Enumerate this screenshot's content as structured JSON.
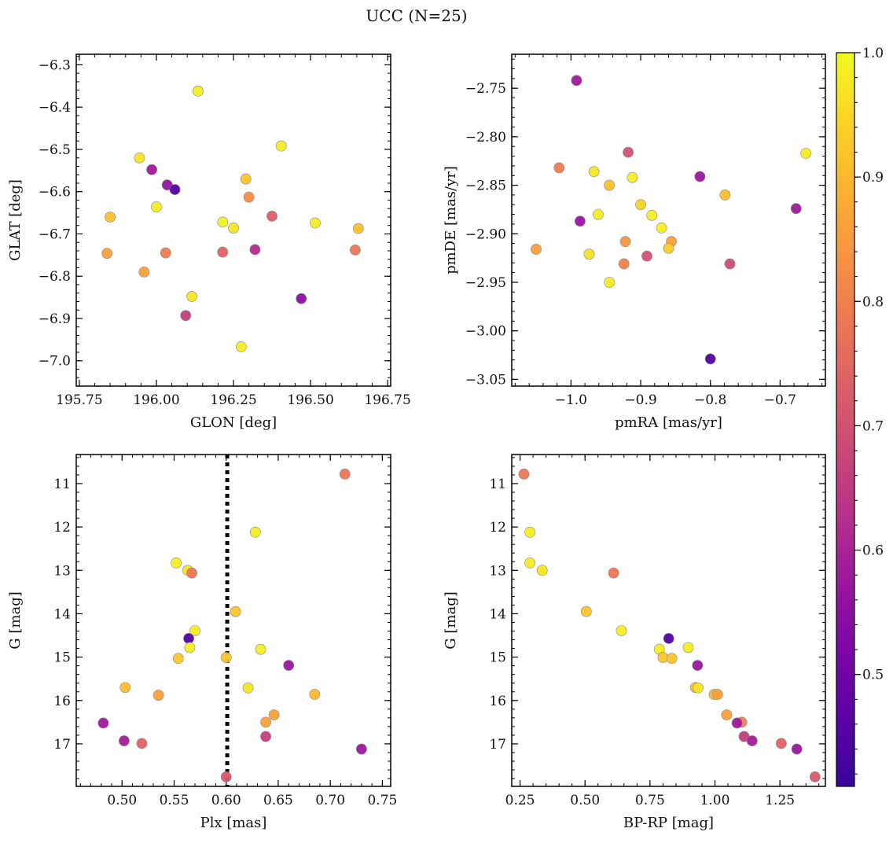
{
  "figure": {
    "suptitle": "UCC (N=25)"
  },
  "colorbar": {
    "cmap": "plasma",
    "vmin": 0.41,
    "vmax": 1.0,
    "ticks": [
      {
        "v": 0.5,
        "label": "0.5"
      },
      {
        "v": 0.6,
        "label": "0.6"
      },
      {
        "v": 0.7,
        "label": "0.7"
      },
      {
        "v": 0.8,
        "label": "0.8"
      },
      {
        "v": 0.9,
        "label": "0.9"
      },
      {
        "v": 1.0,
        "label": "1.0"
      }
    ]
  },
  "chart_data": [
    {
      "id": "glon-glat",
      "type": "scatter",
      "title": "",
      "xlabel": "GLON [deg]",
      "ylabel": "GLAT [deg]",
      "xlim": [
        195.74,
        196.76
      ],
      "ylim": [
        -7.06,
        -6.275
      ],
      "y_inverted": false,
      "xticks": [
        {
          "v": 195.75,
          "label": "195.75"
        },
        {
          "v": 196.0,
          "label": "196.00"
        },
        {
          "v": 196.25,
          "label": "196.25"
        },
        {
          "v": 196.5,
          "label": "196.50"
        },
        {
          "v": 196.75,
          "label": "196.75"
        }
      ],
      "yticks": [
        {
          "v": -6.3,
          "label": "−6.3"
        },
        {
          "v": -6.4,
          "label": "−6.4"
        },
        {
          "v": -6.5,
          "label": "−6.5"
        },
        {
          "v": -6.6,
          "label": "−6.6"
        },
        {
          "v": -6.7,
          "label": "−6.7"
        },
        {
          "v": -6.8,
          "label": "−6.8"
        },
        {
          "v": -6.9,
          "label": "−6.9"
        },
        {
          "v": -7.0,
          "label": "−7.0"
        }
      ],
      "x_minor_step": 0.05,
      "y_minor_step": 0.02,
      "points": [
        {
          "x": 196.135,
          "y": -6.362,
          "c": 0.98
        },
        {
          "x": 196.405,
          "y": -6.492,
          "c": 0.98
        },
        {
          "x": 195.945,
          "y": -6.52,
          "c": 0.97
        },
        {
          "x": 195.985,
          "y": -6.548,
          "c": 0.58
        },
        {
          "x": 196.29,
          "y": -6.57,
          "c": 0.92
        },
        {
          "x": 196.035,
          "y": -6.584,
          "c": 0.56
        },
        {
          "x": 196.06,
          "y": -6.595,
          "c": 0.45
        },
        {
          "x": 196.3,
          "y": -6.613,
          "c": 0.82
        },
        {
          "x": 196.0,
          "y": -6.636,
          "c": 0.98
        },
        {
          "x": 196.375,
          "y": -6.658,
          "c": 0.73
        },
        {
          "x": 195.85,
          "y": -6.66,
          "c": 0.91
        },
        {
          "x": 196.215,
          "y": -6.672,
          "c": 0.99
        },
        {
          "x": 196.515,
          "y": -6.674,
          "c": 0.98
        },
        {
          "x": 196.25,
          "y": -6.686,
          "c": 0.97
        },
        {
          "x": 196.655,
          "y": -6.687,
          "c": 0.91
        },
        {
          "x": 196.32,
          "y": -6.737,
          "c": 0.62
        },
        {
          "x": 196.645,
          "y": -6.738,
          "c": 0.78
        },
        {
          "x": 196.215,
          "y": -6.743,
          "c": 0.74
        },
        {
          "x": 196.03,
          "y": -6.745,
          "c": 0.79
        },
        {
          "x": 195.84,
          "y": -6.746,
          "c": 0.86
        },
        {
          "x": 195.96,
          "y": -6.79,
          "c": 0.86
        },
        {
          "x": 196.115,
          "y": -6.848,
          "c": 0.97
        },
        {
          "x": 196.47,
          "y": -6.853,
          "c": 0.55
        },
        {
          "x": 196.095,
          "y": -6.893,
          "c": 0.66
        },
        {
          "x": 196.275,
          "y": -6.967,
          "c": 0.98
        }
      ]
    },
    {
      "id": "pm",
      "type": "scatter",
      "title": "",
      "xlabel": "pmRA [mas/yr]",
      "ylabel": "pmDE [mas/yr]",
      "xlim": [
        -1.085,
        -0.635
      ],
      "ylim": [
        -3.057,
        -2.715
      ],
      "y_inverted": false,
      "xticks": [
        {
          "v": -1.0,
          "label": "−1.0"
        },
        {
          "v": -0.9,
          "label": "−0.9"
        },
        {
          "v": -0.8,
          "label": "−0.8"
        },
        {
          "v": -0.7,
          "label": "−0.7"
        }
      ],
      "yticks": [
        {
          "v": -2.75,
          "label": "−2.75"
        },
        {
          "v": -2.8,
          "label": "−2.80"
        },
        {
          "v": -2.85,
          "label": "−2.85"
        },
        {
          "v": -2.9,
          "label": "−2.90"
        },
        {
          "v": -2.95,
          "label": "−2.95"
        },
        {
          "v": -3.0,
          "label": "−3.00"
        },
        {
          "v": -3.05,
          "label": "−3.05"
        }
      ],
      "x_minor_step": 0.02,
      "y_minor_step": 0.01,
      "points": [
        {
          "x": -0.992,
          "y": -2.742,
          "c": 0.58
        },
        {
          "x": -0.918,
          "y": -2.816,
          "c": 0.7
        },
        {
          "x": -0.663,
          "y": -2.817,
          "c": 0.98
        },
        {
          "x": -1.017,
          "y": -2.832,
          "c": 0.79
        },
        {
          "x": -0.967,
          "y": -2.836,
          "c": 0.97
        },
        {
          "x": -0.912,
          "y": -2.842,
          "c": 0.98
        },
        {
          "x": -0.815,
          "y": -2.841,
          "c": 0.57
        },
        {
          "x": -0.945,
          "y": -2.85,
          "c": 0.91
        },
        {
          "x": -0.779,
          "y": -2.86,
          "c": 0.91
        },
        {
          "x": -0.9,
          "y": -2.87,
          "c": 0.94
        },
        {
          "x": -0.677,
          "y": -2.874,
          "c": 0.58
        },
        {
          "x": -0.961,
          "y": -2.88,
          "c": 0.98
        },
        {
          "x": -0.884,
          "y": -2.881,
          "c": 0.98
        },
        {
          "x": -0.987,
          "y": -2.887,
          "c": 0.57
        },
        {
          "x": -0.87,
          "y": -2.894,
          "c": 0.98
        },
        {
          "x": -0.922,
          "y": -2.908,
          "c": 0.84
        },
        {
          "x": -0.856,
          "y": -2.908,
          "c": 0.86
        },
        {
          "x": -1.05,
          "y": -2.916,
          "c": 0.86
        },
        {
          "x": -0.86,
          "y": -2.915,
          "c": 0.93
        },
        {
          "x": -0.974,
          "y": -2.921,
          "c": 0.96
        },
        {
          "x": -0.891,
          "y": -2.923,
          "c": 0.7
        },
        {
          "x": -0.924,
          "y": -2.931,
          "c": 0.8
        },
        {
          "x": -0.772,
          "y": -2.931,
          "c": 0.69
        },
        {
          "x": -0.945,
          "y": -2.95,
          "c": 0.98
        },
        {
          "x": -0.8,
          "y": -3.029,
          "c": 0.45
        }
      ]
    },
    {
      "id": "plx-g",
      "type": "scatter",
      "title": "",
      "xlabel": "Plx [mas]",
      "ylabel": "G [mag]",
      "xlim": [
        0.456,
        0.758
      ],
      "ylim": [
        10.33,
        17.98
      ],
      "y_inverted": true,
      "vline": {
        "x": 0.601,
        "style": "dotted"
      },
      "xticks": [
        {
          "v": 0.5,
          "label": "0.50"
        },
        {
          "v": 0.55,
          "label": "0.55"
        },
        {
          "v": 0.6,
          "label": "0.60"
        },
        {
          "v": 0.65,
          "label": "0.65"
        },
        {
          "v": 0.7,
          "label": "0.70"
        },
        {
          "v": 0.75,
          "label": "0.75"
        }
      ],
      "yticks": [
        {
          "v": 11,
          "label": "11"
        },
        {
          "v": 12,
          "label": "12"
        },
        {
          "v": 13,
          "label": "13"
        },
        {
          "v": 14,
          "label": "14"
        },
        {
          "v": 15,
          "label": "15"
        },
        {
          "v": 16,
          "label": "16"
        },
        {
          "v": 17,
          "label": "17"
        }
      ],
      "x_minor_step": 0.01,
      "y_minor_step": 0.2,
      "points": [
        {
          "x": 0.714,
          "y": 10.78,
          "c": 0.78
        },
        {
          "x": 0.628,
          "y": 12.12,
          "c": 0.98
        },
        {
          "x": 0.552,
          "y": 12.83,
          "c": 0.98
        },
        {
          "x": 0.563,
          "y": 13.0,
          "c": 0.97
        },
        {
          "x": 0.567,
          "y": 13.06,
          "c": 0.78
        },
        {
          "x": 0.609,
          "y": 13.95,
          "c": 0.92
        },
        {
          "x": 0.57,
          "y": 14.39,
          "c": 0.98
        },
        {
          "x": 0.564,
          "y": 14.57,
          "c": 0.45
        },
        {
          "x": 0.565,
          "y": 14.78,
          "c": 0.98
        },
        {
          "x": 0.633,
          "y": 14.82,
          "c": 0.98
        },
        {
          "x": 0.6,
          "y": 15.01,
          "c": 0.92
        },
        {
          "x": 0.554,
          "y": 15.03,
          "c": 0.92
        },
        {
          "x": 0.66,
          "y": 15.19,
          "c": 0.57
        },
        {
          "x": 0.503,
          "y": 15.7,
          "c": 0.91
        },
        {
          "x": 0.621,
          "y": 15.71,
          "c": 0.97
        },
        {
          "x": 0.685,
          "y": 15.86,
          "c": 0.9
        },
        {
          "x": 0.535,
          "y": 15.88,
          "c": 0.86
        },
        {
          "x": 0.646,
          "y": 16.33,
          "c": 0.86
        },
        {
          "x": 0.638,
          "y": 16.5,
          "c": 0.86
        },
        {
          "x": 0.482,
          "y": 16.52,
          "c": 0.58
        },
        {
          "x": 0.638,
          "y": 16.83,
          "c": 0.66
        },
        {
          "x": 0.502,
          "y": 16.93,
          "c": 0.59
        },
        {
          "x": 0.519,
          "y": 16.99,
          "c": 0.74
        },
        {
          "x": 0.73,
          "y": 17.12,
          "c": 0.57
        },
        {
          "x": 0.6,
          "y": 17.76,
          "c": 0.72
        }
      ]
    },
    {
      "id": "cmd",
      "type": "scatter",
      "title": "",
      "xlabel": "BP-RP [mag]",
      "ylabel": "G [mag]",
      "xlim": [
        0.218,
        1.425
      ],
      "ylim": [
        10.33,
        17.98
      ],
      "y_inverted": true,
      "xticks": [
        {
          "v": 0.25,
          "label": "0.25"
        },
        {
          "v": 0.5,
          "label": "0.50"
        },
        {
          "v": 0.75,
          "label": "0.75"
        },
        {
          "v": 1.0,
          "label": "1.00"
        },
        {
          "v": 1.25,
          "label": "1.25"
        }
      ],
      "yticks": [
        {
          "v": 11,
          "label": "11"
        },
        {
          "v": 12,
          "label": "12"
        },
        {
          "v": 13,
          "label": "13"
        },
        {
          "v": 14,
          "label": "14"
        },
        {
          "v": 15,
          "label": "15"
        },
        {
          "v": 16,
          "label": "16"
        },
        {
          "v": 17,
          "label": "17"
        }
      ],
      "x_minor_step": 0.05,
      "y_minor_step": 0.2,
      "points": [
        {
          "x": 0.265,
          "y": 10.78,
          "c": 0.78
        },
        {
          "x": 0.288,
          "y": 12.12,
          "c": 0.98
        },
        {
          "x": 0.288,
          "y": 12.83,
          "c": 0.98
        },
        {
          "x": 0.335,
          "y": 13.0,
          "c": 0.97
        },
        {
          "x": 0.61,
          "y": 13.06,
          "c": 0.78
        },
        {
          "x": 0.505,
          "y": 13.95,
          "c": 0.92
        },
        {
          "x": 0.64,
          "y": 14.39,
          "c": 0.98
        },
        {
          "x": 0.822,
          "y": 14.57,
          "c": 0.45
        },
        {
          "x": 0.897,
          "y": 14.78,
          "c": 0.98
        },
        {
          "x": 0.786,
          "y": 14.82,
          "c": 0.98
        },
        {
          "x": 0.8,
          "y": 15.01,
          "c": 0.92
        },
        {
          "x": 0.834,
          "y": 15.03,
          "c": 0.92
        },
        {
          "x": 0.933,
          "y": 15.19,
          "c": 0.57
        },
        {
          "x": 0.925,
          "y": 15.7,
          "c": 0.91
        },
        {
          "x": 0.935,
          "y": 15.71,
          "c": 0.97
        },
        {
          "x": 0.997,
          "y": 15.86,
          "c": 0.9
        },
        {
          "x": 1.01,
          "y": 15.86,
          "c": 0.86
        },
        {
          "x": 1.045,
          "y": 16.33,
          "c": 0.86
        },
        {
          "x": 1.103,
          "y": 16.5,
          "c": 0.8
        },
        {
          "x": 1.085,
          "y": 16.52,
          "c": 0.58
        },
        {
          "x": 1.112,
          "y": 16.83,
          "c": 0.66
        },
        {
          "x": 1.143,
          "y": 16.93,
          "c": 0.59
        },
        {
          "x": 1.255,
          "y": 16.99,
          "c": 0.74
        },
        {
          "x": 1.315,
          "y": 17.12,
          "c": 0.57
        },
        {
          "x": 1.385,
          "y": 17.76,
          "c": 0.72
        }
      ]
    }
  ]
}
